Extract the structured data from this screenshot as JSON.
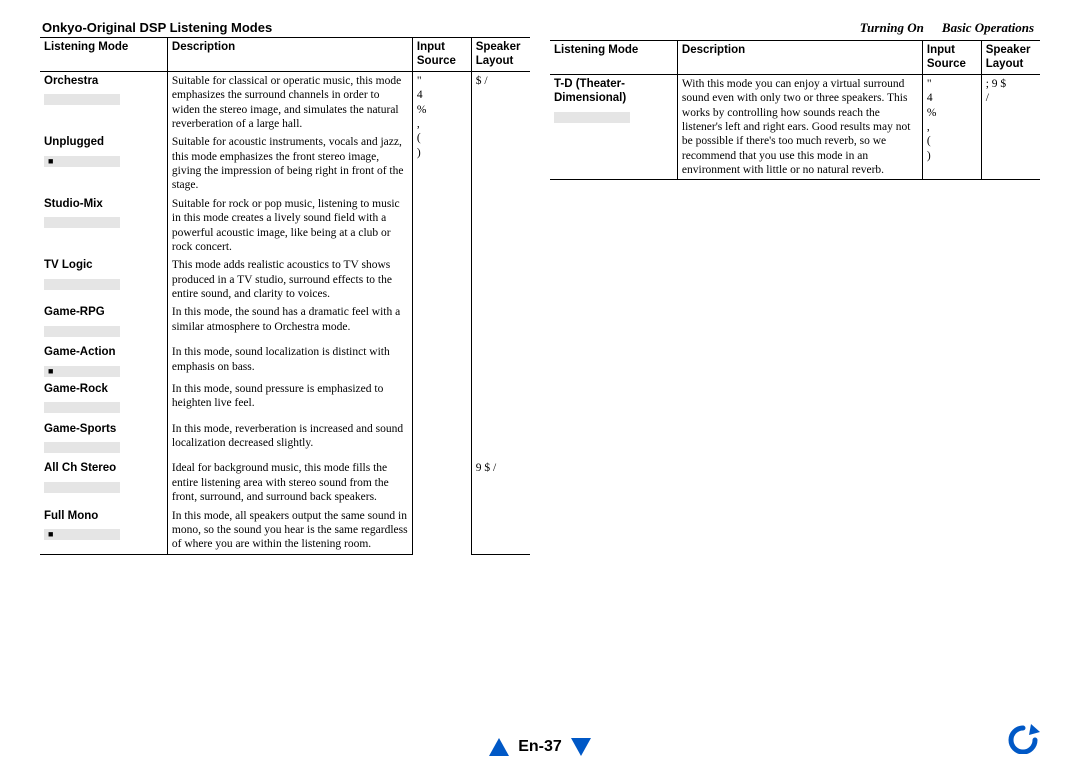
{
  "header": {
    "left": "Turning On",
    "right": "Basic Operations"
  },
  "section_title": "Onkyo-Original DSP Listening Modes",
  "columns": {
    "mode": "Listening Mode",
    "desc": "Description",
    "src": "Input\nSource",
    "lay": "Speaker\nLayout"
  },
  "left_src": "\"\n4\n%\n,\n(\n)",
  "left_lay_first": "$ /",
  "left_rows": [
    {
      "name": "Orchestra",
      "glyph": "",
      "desc": "Suitable for classical or operatic music, this mode emphasizes the surround channels in order to widen the stereo image, and simulates the natural reverberation of a large hall."
    },
    {
      "name": "Unplugged",
      "glyph": "■",
      "desc": "Suitable for acoustic instruments, vocals and jazz, this mode emphasizes the front stereo image, giving the impression of being right in front of the stage."
    },
    {
      "name": "Studio-Mix",
      "glyph": "",
      "desc": "Suitable for rock or pop music, listening to music in this mode creates a lively sound field with a powerful acoustic image, like being at a club or rock concert."
    },
    {
      "name": "TV Logic",
      "glyph": "",
      "desc": "This mode adds realistic acoustics to TV shows produced in a TV studio, surround effects to the entire sound, and clarity to voices."
    },
    {
      "name": "Game-RPG",
      "glyph": "",
      "desc": "In this mode, the sound has a dramatic feel with a similar atmosphere to Orchestra mode."
    },
    {
      "name": "Game-Action",
      "glyph": "■",
      "desc": "In this mode, sound localization is distinct with emphasis on bass."
    },
    {
      "name": "Game-Rock",
      "glyph": "",
      "desc": "In this mode, sound pressure is emphasized to heighten live feel."
    },
    {
      "name": "Game-Sports",
      "glyph": "",
      "desc": "In this mode, reverberation is increased and sound localization decreased slightly."
    },
    {
      "name": "All Ch Stereo",
      "glyph": "",
      "desc": "Ideal for background music, this mode fills the entire listening area with stereo sound from the front, surround, and surround back speakers.",
      "lay": "9 $ /"
    },
    {
      "name": "Full Mono",
      "glyph": "■",
      "desc": "In this mode, all speakers output the same sound in mono, so the sound you hear is the same regardless of where you are within the listening room."
    }
  ],
  "right_rows": [
    {
      "name": "T-D (Theater-Dimensional)",
      "glyph": "",
      "desc": "With this mode you can enjoy a virtual surround sound even with only two or three speakers. This works by controlling how sounds reach the listener's left and right ears. Good results may not be possible if there's too much reverb, so we recommend that you use this mode in an environment with little or no natural reverb.",
      "src": "\"\n4\n%\n,\n(\n)",
      "lay": "; 9 $\n/"
    }
  ],
  "page_number": "En-37",
  "colors": {
    "accent": "#0058c6",
    "glyph_bg": "#e5e5e5",
    "border": "#000000",
    "text": "#000000",
    "bg": "#ffffff"
  }
}
